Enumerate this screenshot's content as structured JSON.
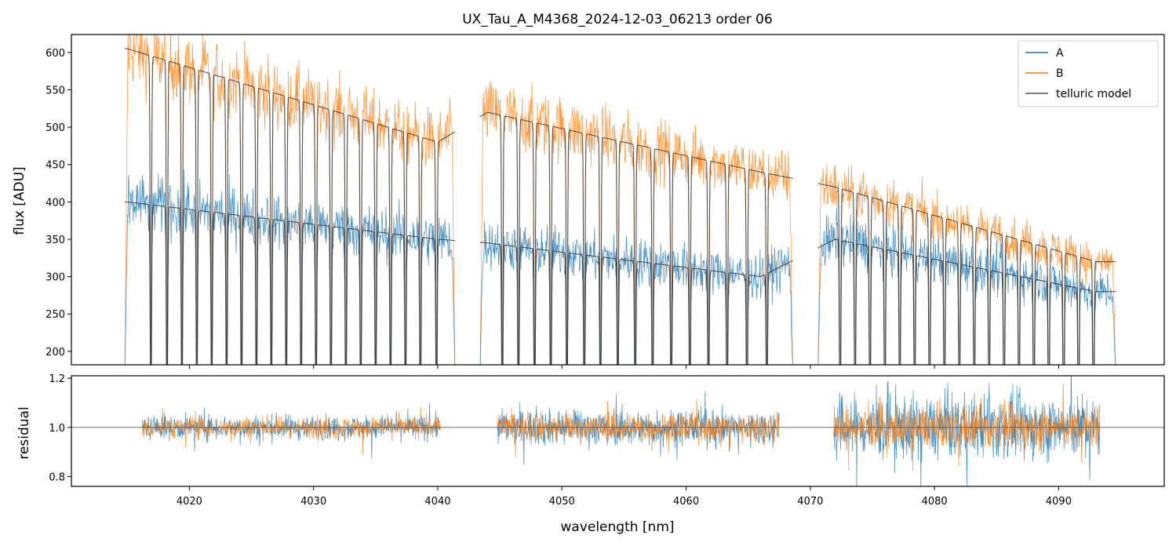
{
  "chart_data": [
    {
      "type": "line",
      "title": "UX_Tau_A_M4368_2024-12-03_06213  order 06",
      "xlabel": "",
      "ylabel": "flux [ADU]",
      "xlim": [
        4010.5,
        4098.5
      ],
      "ylim": [
        182,
        624
      ],
      "yticks": [
        200,
        250,
        300,
        350,
        400,
        450,
        500,
        550,
        600
      ],
      "segments": [
        [
          4014.8,
          4041.4
        ],
        [
          4043.4,
          4068.6
        ],
        [
          4070.6,
          4094.6
        ]
      ],
      "telluric_lines": [
        4016.9,
        4018.2,
        4019.4,
        4020.6,
        4021.8,
        4023.0,
        4024.2,
        4025.4,
        4026.6,
        4027.8,
        4029.0,
        4030.2,
        4031.4,
        4032.6,
        4033.8,
        4035.0,
        4036.2,
        4037.4,
        4038.6,
        4039.9,
        4045.2,
        4046.5,
        4047.8,
        4049.1,
        4050.4,
        4051.8,
        4053.1,
        4054.5,
        4055.9,
        4057.3,
        4058.8,
        4060.3,
        4061.8,
        4063.3,
        4064.9,
        4066.5,
        4072.4,
        4073.6,
        4074.8,
        4076.0,
        4077.2,
        4078.4,
        4079.6,
        4080.8,
        4082.0,
        4083.2,
        4084.4,
        4085.6,
        4086.8,
        4088.0,
        4089.2,
        4090.4,
        4091.6,
        4092.8
      ],
      "series": [
        {
          "name": "A",
          "color": "#1f77b4",
          "continuum_x": [
            4015,
            4040,
            4044,
            4066,
            4072,
            4093
          ],
          "continuum_y": [
            400,
            350,
            345,
            300,
            350,
            280
          ]
        },
        {
          "name": "B",
          "color": "#ff7f0e",
          "continuum_x": [
            4015,
            4040,
            4044,
            4066,
            4072,
            4093
          ],
          "continuum_y": [
            605,
            480,
            520,
            440,
            420,
            320
          ]
        },
        {
          "name": "telluric model",
          "color": "#555555"
        }
      ],
      "legend": [
        "A",
        "B",
        "telluric model"
      ],
      "legend_position": "top-right"
    },
    {
      "type": "line",
      "title": "",
      "xlabel": "wavelength [nm]",
      "ylabel": "residual",
      "xlim": [
        4010.5,
        4098.5
      ],
      "ylim": [
        0.76,
        1.21
      ],
      "yticks": [
        0.8,
        1.0,
        1.2
      ],
      "xticks": [
        4020,
        4030,
        4040,
        4050,
        4060,
        4070,
        4080,
        4090
      ],
      "reference_line": 1.0,
      "segments": [
        [
          4016.2,
          4040.2
        ],
        [
          4044.8,
          4067.5
        ],
        [
          4071.9,
          4093.3
        ]
      ],
      "series": [
        {
          "name": "A",
          "color": "#1f77b4",
          "scatter": [
            0.035,
            0.05,
            0.09
          ]
        },
        {
          "name": "B",
          "color": "#ff7f0e",
          "scatter": [
            0.03,
            0.04,
            0.06
          ]
        }
      ]
    }
  ]
}
